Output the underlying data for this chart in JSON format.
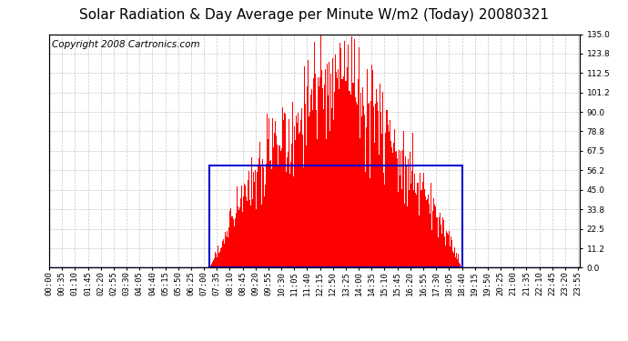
{
  "title": "Solar Radiation & Day Average per Minute W/m2 (Today) 20080321",
  "copyright": "Copyright 2008 Cartronics.com",
  "background_color": "#ffffff",
  "bar_color": "#ff0000",
  "grid_color": "#c8c8c8",
  "blue_line_color": "#0000cc",
  "ytick_values": [
    0.0,
    11.2,
    22.5,
    33.8,
    45.0,
    56.2,
    67.5,
    78.8,
    90.0,
    101.2,
    112.5,
    123.8,
    135.0
  ],
  "ylim": [
    0.0,
    135.0
  ],
  "total_minutes": 1440,
  "sunrise_minute": 435,
  "sunset_minute": 1120,
  "day_average": 59.0,
  "title_fontsize": 11,
  "copyright_fontsize": 7.5,
  "tick_fontsize": 6.5
}
